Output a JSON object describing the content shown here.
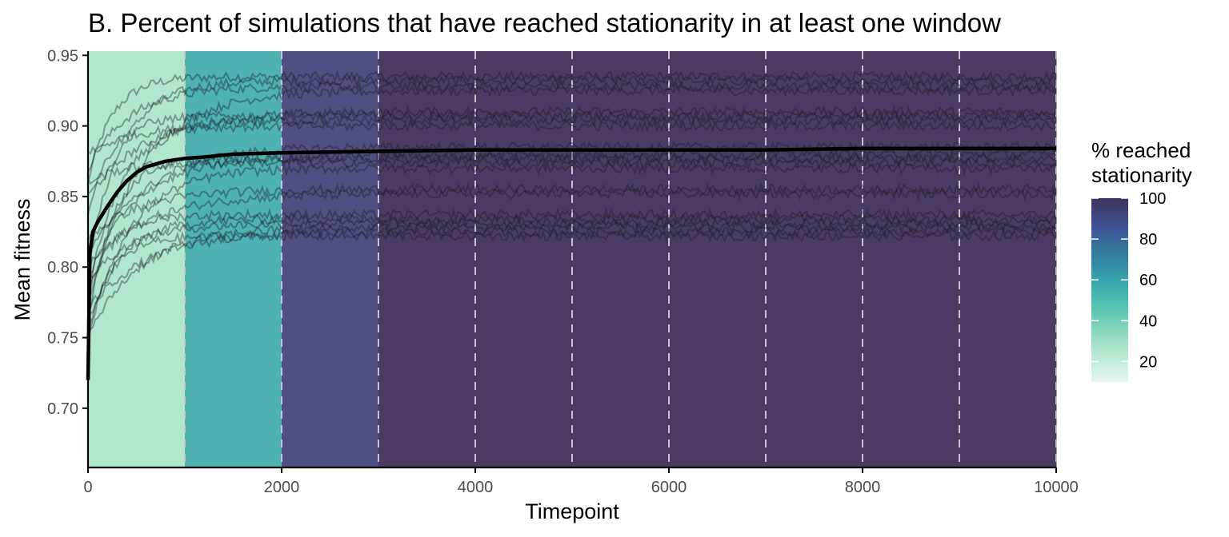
{
  "chart_data": {
    "type": "line",
    "title": "B. Percent of simulations that have reached stationarity in at least one window",
    "xlabel": "Timepoint",
    "ylabel": "Mean fitness",
    "xlim": [
      0,
      10000
    ],
    "ylim": [
      0.658,
      0.953
    ],
    "x_ticks": [
      0,
      2000,
      4000,
      6000,
      8000,
      10000
    ],
    "y_ticks": [
      0.7,
      0.75,
      0.8,
      0.85,
      0.9,
      0.95
    ],
    "x_tick_labels": [
      "0",
      "2000",
      "4000",
      "6000",
      "8000",
      "10000"
    ],
    "y_tick_labels": [
      "0.70",
      "0.75",
      "0.80",
      "0.85",
      "0.90",
      "0.95"
    ],
    "window_boundaries": [
      1000,
      2000,
      3000,
      4000,
      5000,
      6000,
      7000,
      8000,
      9000,
      10000
    ],
    "background_windows": [
      {
        "start": 0,
        "end": 1000,
        "pct_reached": 12
      },
      {
        "start": 1000,
        "end": 2000,
        "pct_reached": 55
      },
      {
        "start": 2000,
        "end": 3000,
        "pct_reached": 88
      },
      {
        "start": 3000,
        "end": 4000,
        "pct_reached": 100
      },
      {
        "start": 4000,
        "end": 5000,
        "pct_reached": 100
      },
      {
        "start": 5000,
        "end": 6000,
        "pct_reached": 100
      },
      {
        "start": 6000,
        "end": 7000,
        "pct_reached": 100
      },
      {
        "start": 7000,
        "end": 8000,
        "pct_reached": 100
      },
      {
        "start": 8000,
        "end": 9000,
        "pct_reached": 100
      },
      {
        "start": 9000,
        "end": 10000,
        "pct_reached": 100
      }
    ],
    "simulation_plateaus": [
      0.935,
      0.932,
      0.928,
      0.925,
      0.91,
      0.907,
      0.904,
      0.9,
      0.885,
      0.88,
      0.877,
      0.874,
      0.87,
      0.855,
      0.852,
      0.837,
      0.834,
      0.831,
      0.828,
      0.825,
      0.822
    ],
    "simulation_starts": [
      0.86,
      0.8,
      0.87,
      0.77,
      0.85,
      0.84,
      0.78,
      0.88,
      0.79,
      0.81,
      0.76,
      0.86,
      0.75,
      0.82,
      0.8,
      0.78,
      0.76,
      0.79,
      0.75,
      0.77,
      0.755
    ],
    "mean_series": {
      "x": [
        0,
        20,
        50,
        100,
        200,
        300,
        400,
        500,
        600,
        800,
        1000,
        1200,
        1500,
        2000,
        3000,
        4000,
        5000,
        6000,
        7000,
        8000,
        9000,
        10000
      ],
      "y": [
        0.72,
        0.81,
        0.825,
        0.832,
        0.843,
        0.853,
        0.861,
        0.867,
        0.871,
        0.875,
        0.877,
        0.878,
        0.88,
        0.881,
        0.882,
        0.883,
        0.883,
        0.883,
        0.883,
        0.884,
        0.884,
        0.884
      ]
    },
    "legend": {
      "title_line1": "% reached",
      "title_line2": "stationarity",
      "ticks": [
        100,
        80,
        60,
        40,
        20
      ],
      "tick_labels": [
        "100",
        "80",
        "60",
        "40",
        "20"
      ],
      "range": [
        10,
        100
      ],
      "color_stops": [
        {
          "value": 10,
          "color": "#e6f8ee"
        },
        {
          "value": 30,
          "color": "#9fe0c2"
        },
        {
          "value": 45,
          "color": "#5cc6b2"
        },
        {
          "value": 60,
          "color": "#36a4ad"
        },
        {
          "value": 72,
          "color": "#327f9e"
        },
        {
          "value": 85,
          "color": "#3f5598"
        },
        {
          "value": 100,
          "color": "#3e325f"
        }
      ],
      "placement": "right"
    },
    "colors": {
      "window_fill": [
        "#b1e8cd",
        "#4eb2b3",
        "#4f4f81",
        "#4a3b63"
      ],
      "mean_line": "#000000",
      "sim_lines": "#1a1a24",
      "boundary_lines": "#c8c3d0"
    }
  }
}
